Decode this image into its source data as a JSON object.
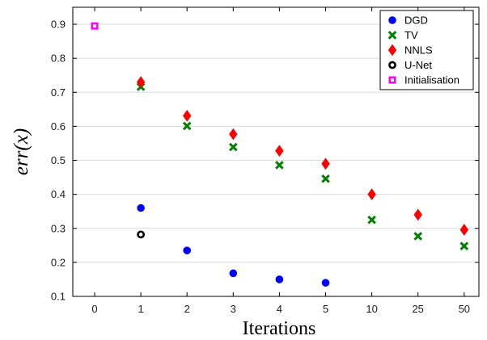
{
  "chart_data": {
    "type": "scatter",
    "xlabel": "Iterations",
    "ylabel": "err(x)",
    "categories": [
      "0",
      "1",
      "2",
      "3",
      "4",
      "5",
      "10",
      "25",
      "50"
    ],
    "ylim": [
      0.1,
      0.95
    ],
    "yticks": [
      "0.1",
      "0.2",
      "0.3",
      "0.4",
      "0.5",
      "0.6",
      "0.7",
      "0.8",
      "0.9"
    ],
    "grid": "horizontal",
    "legend_position": "top-right",
    "series": [
      {
        "name": "DGD",
        "color": "#0000ff",
        "marker": "circle",
        "x": [
          "1",
          "2",
          "3",
          "4",
          "5"
        ],
        "y": [
          0.36,
          0.235,
          0.168,
          0.15,
          0.14
        ]
      },
      {
        "name": "TV",
        "color": "#007f00",
        "marker": "x-cross",
        "x": [
          "1",
          "2",
          "3",
          "4",
          "5",
          "10",
          "25",
          "50"
        ],
        "y": [
          0.716,
          0.601,
          0.539,
          0.486,
          0.446,
          0.325,
          0.277,
          0.248
        ]
      },
      {
        "name": "NNLS",
        "color": "#ff0000",
        "marker": "diamond",
        "x": [
          "1",
          "2",
          "3",
          "4",
          "5",
          "10",
          "25",
          "50"
        ],
        "y": [
          0.73,
          0.631,
          0.577,
          0.528,
          0.49,
          0.4,
          0.34,
          0.296
        ]
      },
      {
        "name": "U-Net",
        "color": "#000000",
        "marker": "ring",
        "x": [
          "1"
        ],
        "y": [
          0.282
        ]
      },
      {
        "name": "Initialisation",
        "color": "#ff00ff",
        "marker": "square",
        "x": [
          "0"
        ],
        "y": [
          0.895
        ]
      }
    ]
  }
}
